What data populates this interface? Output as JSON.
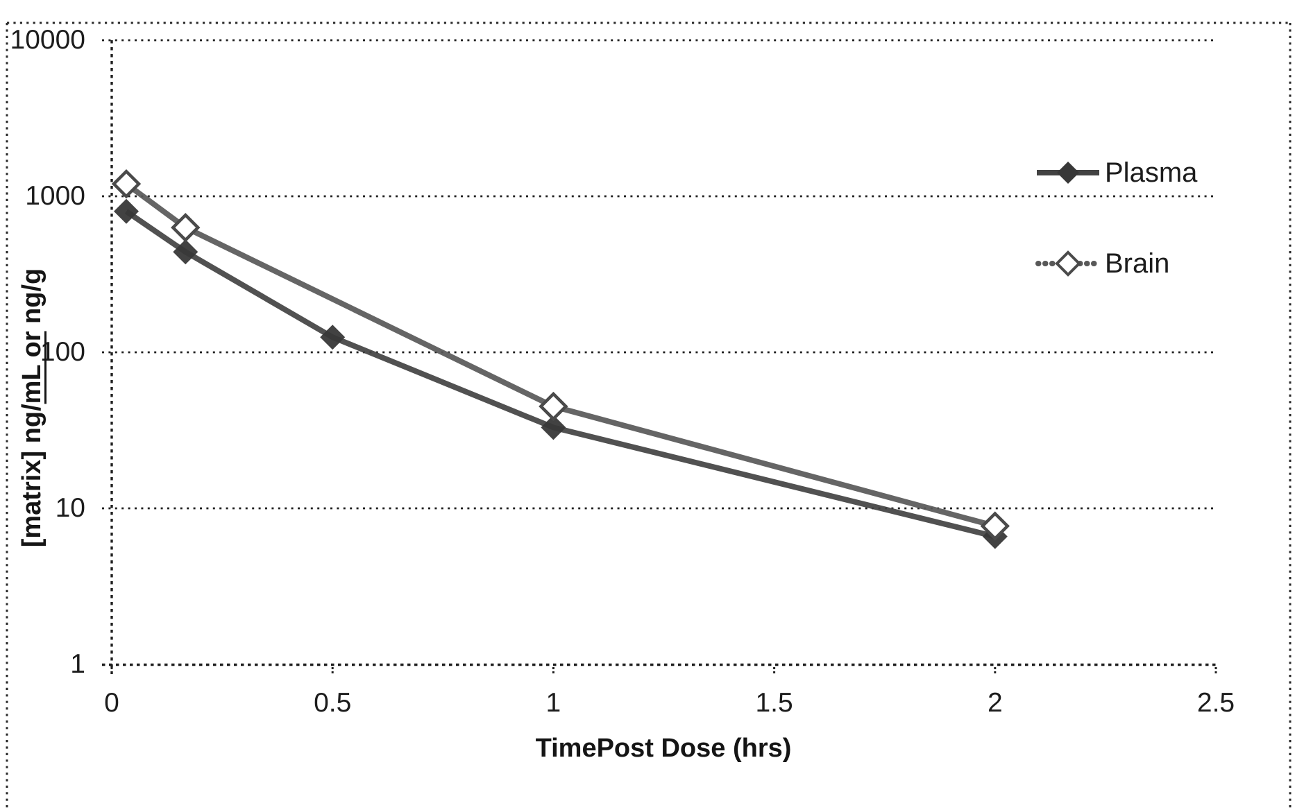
{
  "figure": {
    "kind": "scanned black-and-white semi-log concentration-time plot",
    "background": "#ffffff",
    "ink": "#1c1c1c"
  },
  "chart_data": {
    "type": "line",
    "title": "",
    "xlabel": "TimePost Dose (hrs)",
    "ylabel": "[matrix] ng/mL or ng/g",
    "ylabel_parts": {
      "pre": "[matrix] ng/",
      "underlined": "mL or",
      "post": " ng/g"
    },
    "x_axis": {
      "scale": "linear",
      "min": 0,
      "max": 2.5,
      "ticks": [
        0,
        0.5,
        1,
        1.5,
        2,
        2.5
      ],
      "tick_labels": [
        "0",
        "0.5",
        "1",
        "1.5",
        "2",
        "2.5"
      ]
    },
    "y_axis": {
      "scale": "log",
      "min": 1,
      "max": 10000,
      "ticks": [
        1,
        10,
        100,
        1000,
        10000
      ],
      "tick_labels": [
        "1",
        "10",
        "100",
        "1000",
        "10000"
      ]
    },
    "grid": {
      "horizontal": true,
      "vertical": false,
      "style": "dotted"
    },
    "legend": {
      "position": "inside-top-right"
    },
    "series": [
      {
        "name": "Plasma",
        "marker": "filled-diamond",
        "line_style": "solid-thick",
        "color": "#424242",
        "x": [
          0.033,
          0.167,
          0.5,
          1,
          2
        ],
        "values": [
          800,
          440,
          125,
          33,
          6.6
        ]
      },
      {
        "name": "Brain",
        "marker": "open-diamond",
        "line_style": "solid-thick",
        "color": "#585858",
        "x": [
          0.033,
          0.167,
          1,
          2
        ],
        "values": [
          1200,
          630,
          45,
          7.7
        ]
      }
    ]
  }
}
